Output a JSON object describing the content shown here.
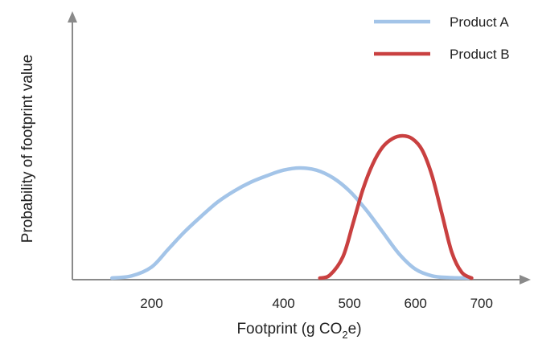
{
  "chart_data": {
    "type": "line",
    "title": "",
    "xlabel": "Footprint (g CO",
    "xlabel_subscript": "2",
    "xlabel_suffix": "e)",
    "ylabel": "Probability of footprint value",
    "xlim": [
      80,
      760
    ],
    "ylim": [
      0,
      1.0
    ],
    "x_ticks": [
      200,
      400,
      500,
      600,
      700
    ],
    "grid": false,
    "legend_position": "top-right",
    "series": [
      {
        "name": "Product A",
        "color": "#a3c4e8",
        "x": [
          140,
          170,
          200,
          225,
          250,
          275,
          300,
          325,
          350,
          375,
          400,
          425,
          450,
          475,
          500,
          525,
          550,
          575,
          600,
          625,
          650,
          680
        ],
        "y": [
          0.0,
          0.02,
          0.1,
          0.26,
          0.42,
          0.56,
          0.69,
          0.79,
          0.87,
          0.93,
          0.98,
          1.0,
          0.98,
          0.91,
          0.79,
          0.62,
          0.42,
          0.22,
          0.08,
          0.02,
          0.005,
          0.0
        ]
      },
      {
        "name": "Product B",
        "color": "#c94040",
        "x": [
          455,
          470,
          490,
          505,
          520,
          535,
          550,
          565,
          580,
          595,
          610,
          625,
          640,
          655,
          670,
          685
        ],
        "y": [
          0.0,
          0.02,
          0.15,
          0.38,
          0.62,
          0.8,
          0.92,
          0.98,
          1.0,
          0.98,
          0.9,
          0.72,
          0.45,
          0.18,
          0.04,
          0.0
        ]
      }
    ]
  }
}
